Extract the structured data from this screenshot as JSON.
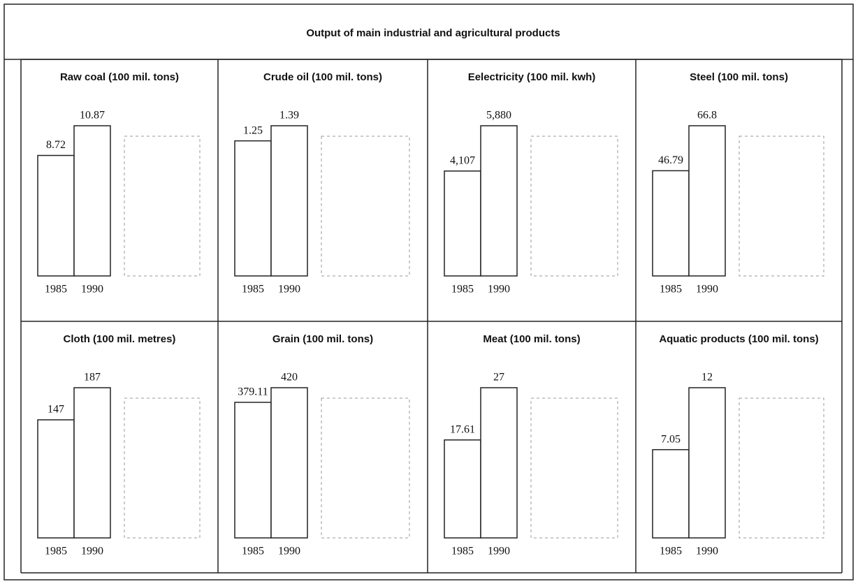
{
  "title": "Output of main industrial and agricultural products",
  "chart_data": [
    {
      "type": "bar",
      "title": "Raw coal (100 mil. tons)",
      "categories": [
        "1985",
        "1990"
      ],
      "values": [
        8.72,
        10.87
      ]
    },
    {
      "type": "bar",
      "title": "Crude oil (100 mil. tons)",
      "categories": [
        "1985",
        "1990"
      ],
      "values": [
        1.25,
        1.39
      ]
    },
    {
      "type": "bar",
      "title": "Eelectricity (100 mil. kwh)",
      "categories": [
        "1985",
        "1990"
      ],
      "values": [
        4107,
        5880
      ],
      "value_labels": [
        "4,107",
        "5,880"
      ]
    },
    {
      "type": "bar",
      "title": "Steel (100 mil. tons)",
      "categories": [
        "1985",
        "1990"
      ],
      "values": [
        46.79,
        66.8
      ]
    },
    {
      "type": "bar",
      "title": "Cloth (100 mil. metres)",
      "categories": [
        "1985",
        "1990"
      ],
      "values": [
        147,
        187
      ]
    },
    {
      "type": "bar",
      "title": "Grain (100 mil. tons)",
      "categories": [
        "1985",
        "1990"
      ],
      "values": [
        379.11,
        420
      ]
    },
    {
      "type": "bar",
      "title": "Meat (100 mil. tons)",
      "categories": [
        "1985",
        "1990"
      ],
      "values": [
        17.61,
        27
      ]
    },
    {
      "type": "bar",
      "title": "Aquatic products (100 mil. tons)",
      "categories": [
        "1985",
        "1990"
      ],
      "values": [
        7.05,
        12
      ]
    }
  ]
}
